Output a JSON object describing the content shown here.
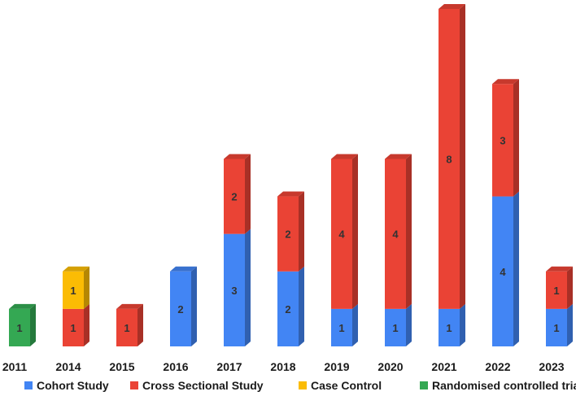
{
  "chart_data": {
    "type": "bar",
    "stacked": true,
    "style": "3d",
    "categories": [
      "2011",
      "2014",
      "2015",
      "2016",
      "2017",
      "2018",
      "2019",
      "2020",
      "2021",
      "2022",
      "2023"
    ],
    "series": [
      {
        "name": "Cohort Study",
        "color": "#4285F4",
        "values": [
          0,
          0,
          0,
          2,
          3,
          2,
          1,
          1,
          1,
          4,
          1
        ]
      },
      {
        "name": "Cross Sectional Study",
        "color": "#EA4335",
        "values": [
          0,
          1,
          1,
          0,
          2,
          2,
          4,
          4,
          8,
          3,
          1
        ]
      },
      {
        "name": "Case Control",
        "color": "#FBBC04",
        "values": [
          0,
          1,
          0,
          0,
          0,
          0,
          0,
          0,
          0,
          0,
          0
        ]
      },
      {
        "name": "Randomised controlled trial",
        "color": "#34A853",
        "values": [
          1,
          0,
          0,
          0,
          0,
          0,
          0,
          0,
          0,
          0,
          0
        ]
      }
    ],
    "title": "",
    "xlabel": "",
    "ylabel": "",
    "ylim": [
      0,
      9
    ],
    "grid": false,
    "legend": "bottom",
    "data_labels": true
  }
}
